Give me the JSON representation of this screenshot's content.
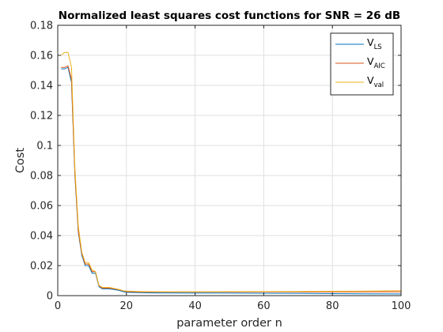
{
  "chart_data": {
    "type": "line",
    "title": "Normalized least squares cost functions for SNR = 26 dB",
    "xlabel": "parameter order n",
    "ylabel": "Cost",
    "xlim": [
      0,
      100
    ],
    "ylim": [
      0,
      0.18
    ],
    "xticks": [
      0,
      20,
      40,
      60,
      80,
      100
    ],
    "xtick_labels": [
      "0",
      "20",
      "40",
      "60",
      "80",
      "100"
    ],
    "yticks": [
      0,
      0.02,
      0.04,
      0.06,
      0.08,
      0.1,
      0.12,
      0.14,
      0.16,
      0.18
    ],
    "ytick_labels": [
      "0",
      "0.02",
      "0.04",
      "0.06",
      "0.08",
      "0.1",
      "0.12",
      "0.14",
      "0.16",
      "0.18"
    ],
    "grid": true,
    "legend_position": "top-right",
    "series": [
      {
        "name": "V",
        "subscript": "LS",
        "color": "#0072BD",
        "x": [
          1,
          2,
          3,
          4,
          5,
          6,
          7,
          8,
          9,
          10,
          11,
          12,
          13,
          14,
          15,
          16,
          17,
          18,
          19,
          20,
          25,
          30,
          40,
          50,
          60,
          70,
          80,
          90,
          100
        ],
        "y": [
          0.151,
          0.151,
          0.152,
          0.142,
          0.08,
          0.042,
          0.027,
          0.02,
          0.02,
          0.015,
          0.015,
          0.006,
          0.0045,
          0.0045,
          0.0045,
          0.0042,
          0.0038,
          0.0034,
          0.0027,
          0.0022,
          0.0019,
          0.0018,
          0.0017,
          0.0017,
          0.0016,
          0.0015,
          0.0013,
          0.0012,
          0.0011
        ]
      },
      {
        "name": "V",
        "subscript": "AIC",
        "color": "#D95319",
        "x": [
          1,
          2,
          3,
          4,
          5,
          6,
          7,
          8,
          9,
          10,
          11,
          12,
          13,
          14,
          15,
          16,
          17,
          18,
          19,
          20,
          25,
          30,
          40,
          50,
          60,
          70,
          80,
          90,
          100
        ],
        "y": [
          0.152,
          0.152,
          0.153,
          0.144,
          0.081,
          0.043,
          0.028,
          0.021,
          0.021,
          0.016,
          0.016,
          0.0065,
          0.005,
          0.005,
          0.005,
          0.0047,
          0.0043,
          0.0039,
          0.0032,
          0.0027,
          0.0024,
          0.0024,
          0.0024,
          0.0025,
          0.0025,
          0.0025,
          0.0025,
          0.0025,
          0.0026
        ]
      },
      {
        "name": "V",
        "subscript": "val",
        "color": "#EDB120",
        "x": [
          1,
          2,
          3,
          4,
          5,
          6,
          7,
          8,
          9,
          10,
          11,
          12,
          13,
          14,
          15,
          16,
          17,
          18,
          19,
          20,
          25,
          30,
          40,
          50,
          60,
          70,
          80,
          90,
          100
        ],
        "y": [
          0.16,
          0.162,
          0.162,
          0.152,
          0.085,
          0.046,
          0.029,
          0.022,
          0.022,
          0.017,
          0.016,
          0.0068,
          0.0055,
          0.0055,
          0.0055,
          0.005,
          0.0045,
          0.004,
          0.0033,
          0.003,
          0.0027,
          0.0026,
          0.0026,
          0.0027,
          0.0027,
          0.0028,
          0.0029,
          0.003,
          0.0033
        ]
      }
    ]
  }
}
